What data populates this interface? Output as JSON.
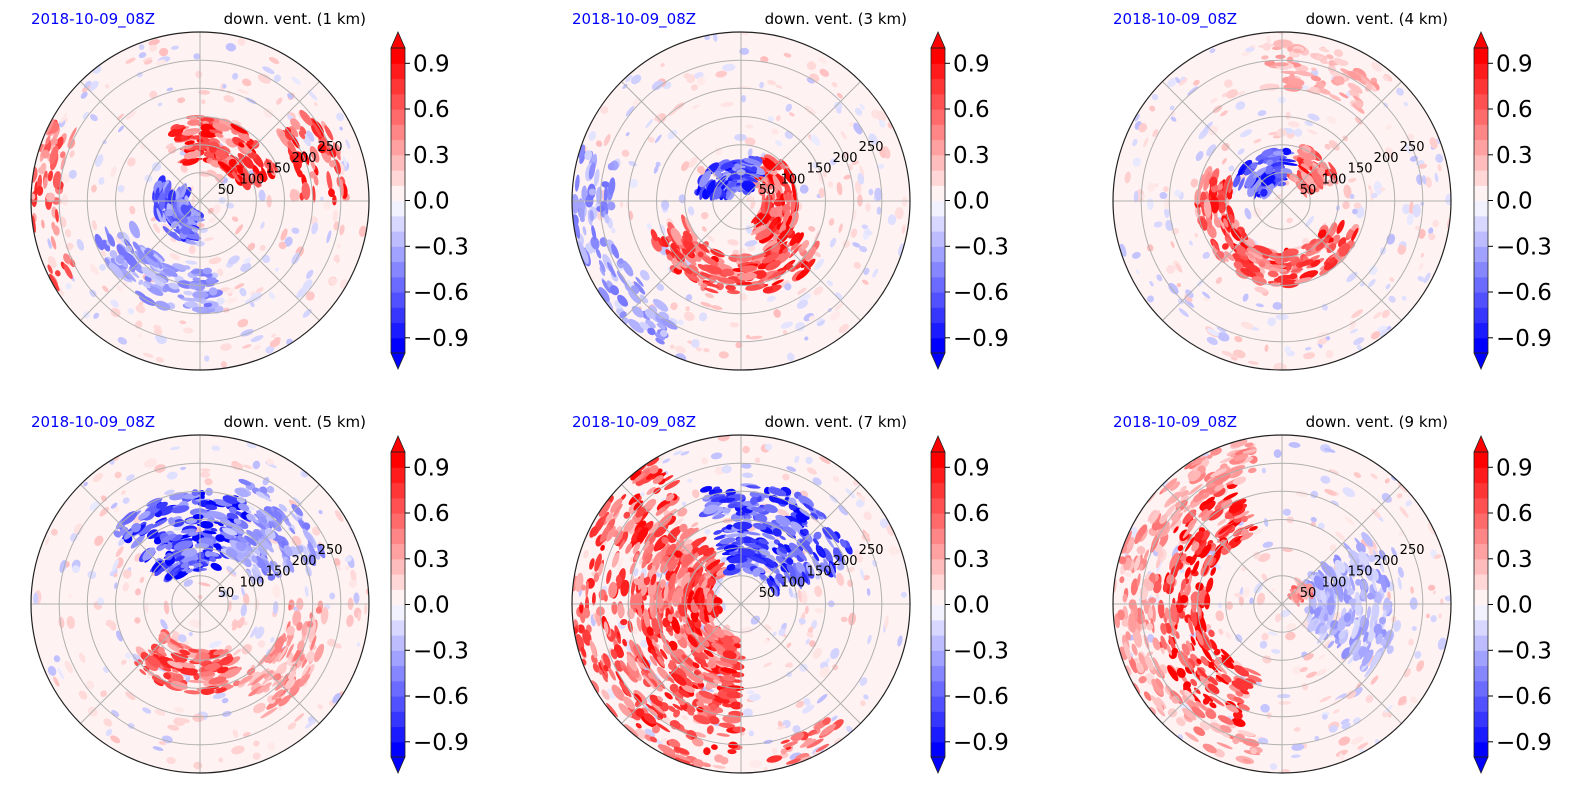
{
  "colors": {
    "red": "#ff0000",
    "blue": "#0000ff",
    "white": "#ffffff",
    "grid": "#b0b0b0",
    "date_label": "#0000ff",
    "title_label": "#000000"
  },
  "chart_data": [
    {
      "type": "heatmap",
      "projection": "polar",
      "left_title": "2018-10-09_08Z",
      "title": "down. vent. (1 km)",
      "radial_ticks": [
        50,
        100,
        150,
        200,
        250
      ],
      "rlim": [
        0,
        300
      ],
      "angular_gridlines_deg": [
        0,
        45,
        90,
        135,
        180,
        225,
        270,
        315
      ],
      "colorbar": {
        "ticks": [
          -0.9,
          -0.6,
          -0.3,
          0.0,
          0.3,
          0.6,
          0.9
        ],
        "tick_labels": [
          "−0.9",
          "−0.6",
          "−0.3",
          "0.0",
          "0.3",
          "0.6",
          "0.9"
        ],
        "vmin": -1.0,
        "vmax": 1.0,
        "levels": 20,
        "extend": "both",
        "cmap": "bwr"
      },
      "features": [
        {
          "sign": "positive",
          "azimuth_deg_start": 20,
          "azimuth_deg_end": 110,
          "r_inner": 70,
          "r_outer": 150,
          "intensity": 1.0
        },
        {
          "sign": "positive",
          "azimuth_deg_start": 0,
          "azimuth_deg_end": 40,
          "r_inner": 180,
          "r_outer": 260,
          "intensity": 0.9
        },
        {
          "sign": "negative",
          "azimuth_deg_start": 150,
          "azimuth_deg_end": 260,
          "r_inner": 20,
          "r_outer": 80,
          "intensity": 0.8
        },
        {
          "sign": "negative",
          "azimuth_deg_start": 200,
          "azimuth_deg_end": 280,
          "r_inner": 120,
          "r_outer": 200,
          "intensity": 0.5
        },
        {
          "sign": "positive",
          "azimuth_deg_start": 150,
          "azimuth_deg_end": 210,
          "r_inner": 250,
          "r_outer": 300,
          "intensity": 0.8
        }
      ]
    },
    {
      "type": "heatmap",
      "projection": "polar",
      "left_title": "2018-10-09_08Z",
      "title": "down. vent. (3 km)",
      "radial_ticks": [
        50,
        100,
        150,
        200,
        250
      ],
      "rlim": [
        0,
        300
      ],
      "angular_gridlines_deg": [
        0,
        45,
        90,
        135,
        180,
        225,
        270,
        315
      ],
      "colorbar": {
        "ticks": [
          -0.9,
          -0.6,
          -0.3,
          0.0,
          0.3,
          0.6,
          0.9
        ],
        "tick_labels": [
          "−0.9",
          "−0.6",
          "−0.3",
          "0.0",
          "0.3",
          "0.6",
          "0.9"
        ],
        "vmin": -1.0,
        "vmax": 1.0,
        "levels": 20,
        "extend": "both",
        "cmap": "bwr"
      },
      "features": [
        {
          "sign": "positive",
          "azimuth_deg_start": -60,
          "azimuth_deg_end": 60,
          "r_inner": 40,
          "r_outer": 100,
          "intensity": 1.0
        },
        {
          "sign": "negative",
          "azimuth_deg_start": 60,
          "azimuth_deg_end": 170,
          "r_inner": 20,
          "r_outer": 80,
          "intensity": 0.9
        },
        {
          "sign": "positive",
          "azimuth_deg_start": 200,
          "azimuth_deg_end": 330,
          "r_inner": 100,
          "r_outer": 170,
          "intensity": 0.9
        },
        {
          "sign": "negative",
          "azimuth_deg_start": 160,
          "azimuth_deg_end": 240,
          "r_inner": 230,
          "r_outer": 300,
          "intensity": 0.5
        }
      ]
    },
    {
      "type": "heatmap",
      "projection": "polar",
      "left_title": "2018-10-09_08Z",
      "title": "down. vent. (4 km)",
      "radial_ticks": [
        50,
        100,
        150,
        200,
        250
      ],
      "rlim": [
        0,
        300
      ],
      "angular_gridlines_deg": [
        0,
        45,
        90,
        135,
        180,
        225,
        270,
        315
      ],
      "colorbar": {
        "ticks": [
          -0.9,
          -0.6,
          -0.3,
          0.0,
          0.3,
          0.6,
          0.9
        ],
        "tick_labels": [
          "−0.9",
          "−0.6",
          "−0.3",
          "0.0",
          "0.3",
          "0.6",
          "0.9"
        ],
        "vmin": -1.0,
        "vmax": 1.0,
        "levels": 20,
        "extend": "both",
        "cmap": "bwr"
      },
      "features": [
        {
          "sign": "positive",
          "azimuth_deg_start": 160,
          "azimuth_deg_end": 340,
          "r_inner": 90,
          "r_outer": 150,
          "intensity": 0.9
        },
        {
          "sign": "negative",
          "azimuth_deg_start": 80,
          "azimuth_deg_end": 160,
          "r_inner": 30,
          "r_outer": 90,
          "intensity": 0.9
        },
        {
          "sign": "positive",
          "azimuth_deg_start": 20,
          "azimuth_deg_end": 70,
          "r_inner": 40,
          "r_outer": 110,
          "intensity": 0.9
        },
        {
          "sign": "positive",
          "azimuth_deg_start": 50,
          "azimuth_deg_end": 100,
          "r_inner": 200,
          "r_outer": 280,
          "intensity": 0.4
        }
      ]
    },
    {
      "type": "heatmap",
      "projection": "polar",
      "left_title": "2018-10-09_08Z",
      "title": "down. vent. (5 km)",
      "radial_ticks": [
        50,
        100,
        150,
        200,
        250
      ],
      "rlim": [
        0,
        300
      ],
      "angular_gridlines_deg": [
        0,
        45,
        90,
        135,
        180,
        225,
        270,
        315
      ],
      "colorbar": {
        "ticks": [
          -0.9,
          -0.6,
          -0.3,
          0.0,
          0.3,
          0.6,
          0.9
        ],
        "tick_labels": [
          "−0.9",
          "−0.6",
          "−0.3",
          "0.0",
          "0.3",
          "0.6",
          "0.9"
        ],
        "vmin": -1.0,
        "vmax": 1.0,
        "levels": 20,
        "extend": "both",
        "cmap": "bwr"
      },
      "features": [
        {
          "sign": "negative",
          "azimuth_deg_start": 60,
          "azimuth_deg_end": 140,
          "r_inner": 60,
          "r_outer": 200,
          "intensity": 1.0
        },
        {
          "sign": "negative",
          "azimuth_deg_start": 20,
          "azimuth_deg_end": 70,
          "r_inner": 100,
          "r_outer": 240,
          "intensity": 0.5
        },
        {
          "sign": "positive",
          "azimuth_deg_start": 220,
          "azimuth_deg_end": 300,
          "r_inner": 80,
          "r_outer": 160,
          "intensity": 0.8
        },
        {
          "sign": "positive",
          "azimuth_deg_start": 300,
          "azimuth_deg_end": 360,
          "r_inner": 150,
          "r_outer": 230,
          "intensity": 0.5
        }
      ]
    },
    {
      "type": "heatmap",
      "projection": "polar",
      "left_title": "2018-10-09_08Z",
      "title": "down. vent. (7 km)",
      "radial_ticks": [
        50,
        100,
        150,
        200,
        250
      ],
      "rlim": [
        0,
        300
      ],
      "angular_gridlines_deg": [
        0,
        45,
        90,
        135,
        180,
        225,
        270,
        315
      ],
      "colorbar": {
        "ticks": [
          -0.9,
          -0.6,
          -0.3,
          0.0,
          0.3,
          0.6,
          0.9
        ],
        "tick_labels": [
          "−0.9",
          "−0.6",
          "−0.3",
          "0.0",
          "0.3",
          "0.6",
          "0.9"
        ],
        "vmin": -1.0,
        "vmax": 1.0,
        "levels": 20,
        "extend": "both",
        "cmap": "bwr"
      },
      "features": [
        {
          "sign": "positive",
          "azimuth_deg_start": 120,
          "azimuth_deg_end": 270,
          "r_inner": 60,
          "r_outer": 300,
          "intensity": 0.9
        },
        {
          "sign": "positive",
          "azimuth_deg_start": 160,
          "azimuth_deg_end": 200,
          "r_inner": 40,
          "r_outer": 90,
          "intensity": 1.0
        },
        {
          "sign": "negative",
          "azimuth_deg_start": 20,
          "azimuth_deg_end": 110,
          "r_inner": 60,
          "r_outer": 220,
          "intensity": 0.9
        },
        {
          "sign": "positive",
          "azimuth_deg_start": 280,
          "azimuth_deg_end": 310,
          "r_inner": 250,
          "r_outer": 300,
          "intensity": 0.8
        }
      ]
    },
    {
      "type": "heatmap",
      "projection": "polar",
      "left_title": "2018-10-09_08Z",
      "title": "down. vent. (9 km)",
      "radial_ticks": [
        50,
        100,
        150,
        200,
        250
      ],
      "rlim": [
        0,
        300
      ],
      "angular_gridlines_deg": [
        0,
        45,
        90,
        135,
        180,
        225,
        270,
        315
      ],
      "colorbar": {
        "ticks": [
          -0.9,
          -0.6,
          -0.3,
          0.0,
          0.3,
          0.6,
          0.9
        ],
        "tick_labels": [
          "−0.9",
          "−0.6",
          "−0.3",
          "0.0",
          "0.3",
          "0.6",
          "0.9"
        ],
        "vmin": -1.0,
        "vmax": 1.0,
        "levels": 20,
        "extend": "both",
        "cmap": "bwr"
      },
      "features": [
        {
          "sign": "positive",
          "azimuth_deg_start": 110,
          "azimuth_deg_end": 250,
          "r_inner": 130,
          "r_outer": 230,
          "intensity": 1.0
        },
        {
          "sign": "positive",
          "azimuth_deg_start": 100,
          "azimuth_deg_end": 260,
          "r_inner": 230,
          "r_outer": 300,
          "intensity": 0.5
        },
        {
          "sign": "negative",
          "azimuth_deg_start": -40,
          "azimuth_deg_end": 40,
          "r_inner": 50,
          "r_outer": 200,
          "intensity": 0.4
        },
        {
          "sign": "positive",
          "azimuth_deg_start": 20,
          "azimuth_deg_end": 50,
          "r_inner": 20,
          "r_outer": 60,
          "intensity": 0.6
        }
      ]
    }
  ]
}
